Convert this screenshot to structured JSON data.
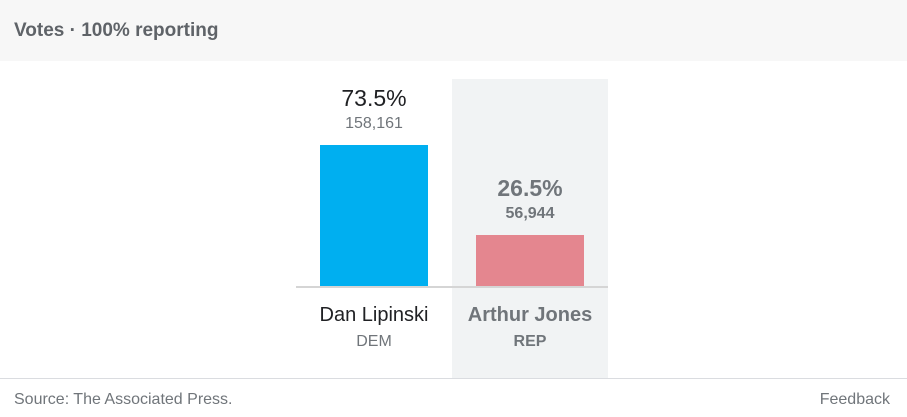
{
  "header": {
    "title": "Votes · 100% reporting"
  },
  "chart_data": {
    "type": "bar",
    "categories": [
      "Dan Lipinski",
      "Arthur Jones"
    ],
    "parties": [
      "DEM",
      "REP"
    ],
    "percent_labels": [
      "73.5%",
      "26.5%"
    ],
    "vote_labels": [
      "158,161",
      "56,944"
    ],
    "values": [
      73.5,
      26.5
    ],
    "votes": [
      158161,
      56944
    ],
    "colors": [
      "#00aff0",
      "#e4868f"
    ],
    "highlight_color": "#f1f3f4",
    "highlighted_index": 1,
    "ylim": [
      0,
      100
    ]
  },
  "footer": {
    "source": "Source: The Associated Press.",
    "feedback": "Feedback"
  }
}
